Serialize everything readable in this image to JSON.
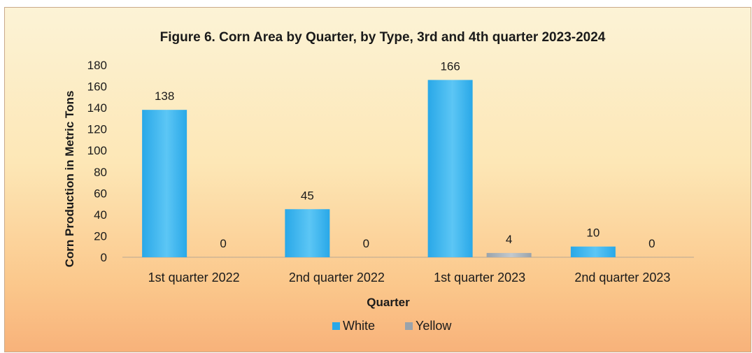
{
  "chart_data": {
    "type": "bar",
    "title": "Figure 6. Corn Area by Quarter, by Type, 3rd and 4th quarter 2023-2024",
    "xlabel": "Quarter",
    "ylabel": "Corn Production in Metric Tons",
    "categories": [
      "1st quarter 2022",
      "2nd quarter 2022",
      "1st quarter 2023",
      "2nd quarter 2023"
    ],
    "series": [
      {
        "name": "White",
        "values": [
          138,
          45,
          166,
          10
        ],
        "color": "#29a8e8"
      },
      {
        "name": "Yellow",
        "values": [
          0,
          0,
          4,
          0
        ],
        "color": "#9aa3ab"
      }
    ],
    "ylim": [
      0,
      180
    ],
    "yticks": [
      0,
      20,
      40,
      60,
      80,
      100,
      120,
      140,
      160,
      180
    ],
    "grid": false,
    "legend": "bottom"
  }
}
